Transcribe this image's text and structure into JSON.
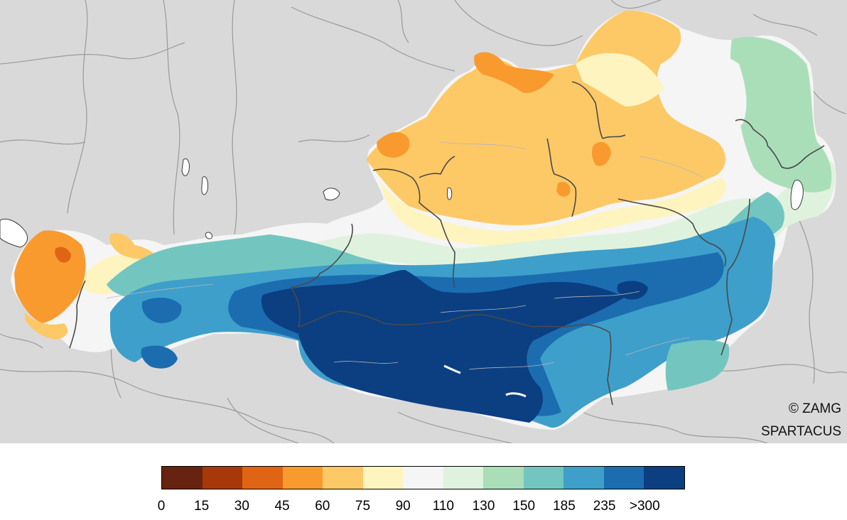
{
  "credits": {
    "line1": "© ZAMG",
    "line2": "SPARTACUS"
  },
  "legend": {
    "labels": [
      "0",
      "15",
      "30",
      "45",
      "60",
      "75",
      "90",
      "110",
      "130",
      "150",
      "185",
      "235",
      ">300"
    ],
    "colors": [
      "#67230f",
      "#a6380a",
      "#df6515",
      "#f99a2f",
      "#fdc967",
      "#fef4bf",
      "#f5f5f5",
      "#dff2de",
      "#aadeb9",
      "#73c6c0",
      "#3e9fcb",
      "#1b6db0",
      "#0b3f81"
    ]
  },
  "colors": {
    "background_land": "#d9d9d9",
    "lakes": "#ffffff",
    "borders": "#3c3c3c",
    "minor_borders": "#9a9a9a"
  }
}
